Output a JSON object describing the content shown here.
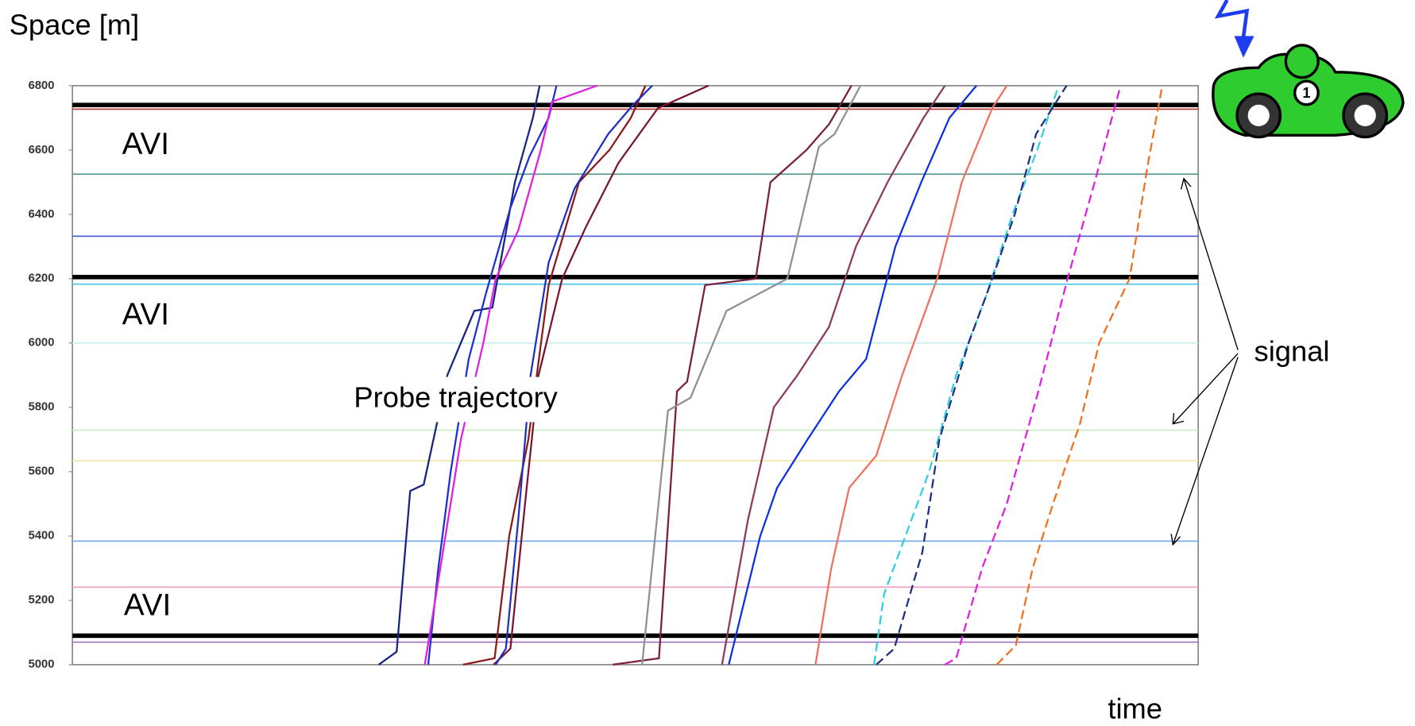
{
  "chart_data": {
    "type": "line",
    "y_label": "Space [m]",
    "x_label": "time",
    "ylim": [
      5000,
      6800
    ],
    "yticks": [
      5000,
      5200,
      5400,
      5600,
      5800,
      6000,
      6200,
      6400,
      6600,
      6800
    ],
    "xlim": [
      0,
      100
    ],
    "annotations": [
      "AVI",
      "AVI",
      "AVI",
      "Probe  trajectory",
      "signal"
    ],
    "avi_lines": [
      6740,
      6205,
      5090
    ],
    "signal_lines": [
      {
        "value": 6727,
        "color": "#c03030"
      },
      {
        "value": 6525,
        "color": "#5a9a90"
      },
      {
        "value": 6332,
        "color": "#5060e0"
      },
      {
        "value": 6183,
        "color": "#50c8f0"
      },
      {
        "value": 6000,
        "color": "#c8f0f0"
      },
      {
        "value": 5729,
        "color": "#c8ecc0"
      },
      {
        "value": 5634,
        "color": "#f0e8a0"
      },
      {
        "value": 5384,
        "color": "#80b0f0"
      },
      {
        "value": 5241,
        "color": "#f0a0c8"
      },
      {
        "value": 5070,
        "color": "#a070c0"
      }
    ],
    "series": [
      {
        "color": "#1a237e",
        "dash": false,
        "x": [
          27.2,
          28.8,
          30.0,
          31.2,
          33.3,
          35.7,
          37.3,
          39.3,
          40.9,
          41.5
        ],
        "values": [
          5000,
          5040,
          5540,
          5560,
          5900,
          6100,
          6110,
          6500,
          6700,
          6800
        ]
      },
      {
        "color": "#2030d0",
        "dash": false,
        "x": [
          31.6,
          32.5,
          33.6,
          35.2,
          36.7,
          38.9,
          40.6,
          42.3,
          43.0
        ],
        "values": [
          5000,
          5300,
          5600,
          5950,
          6150,
          6420,
          6580,
          6700,
          6800
        ]
      },
      {
        "color": "#e020e0",
        "dash": false,
        "x": [
          31.3,
          32.4,
          34.5,
          36.5,
          37.6,
          39.6,
          41.6,
          42.6,
          46.6
        ],
        "values": [
          5000,
          5240,
          5700,
          6000,
          6200,
          6350,
          6600,
          6750,
          6800
        ]
      },
      {
        "color": "#8b1a1a",
        "dash": false,
        "x": [
          34.7,
          37.5,
          38.8,
          40.5,
          42.3,
          45.0,
          47.7,
          49.6,
          50.9
        ],
        "values": [
          5000,
          5020,
          5400,
          5700,
          6180,
          6500,
          6600,
          6700,
          6800
        ]
      },
      {
        "color": "#7a1530",
        "dash": false,
        "x": [
          37.4,
          38.9,
          40.2,
          41.4,
          43.5,
          45.6,
          48.5,
          52.0,
          56.5
        ],
        "values": [
          5000,
          5050,
          5500,
          5900,
          6200,
          6360,
          6560,
          6730,
          6800
        ]
      },
      {
        "color": "#2030c0",
        "dash": false,
        "x": [
          37.6,
          38.5,
          39.6,
          40.7,
          42.3,
          44.6,
          47.6,
          49.8,
          51.5
        ],
        "values": [
          5000,
          5050,
          5450,
          5900,
          6250,
          6480,
          6650,
          6740,
          6800
        ]
      },
      {
        "color": "#7a2040",
        "dash": false,
        "x": [
          48.0,
          52.1,
          53.7,
          54.6,
          56.2,
          60.7,
          62.0,
          65.2,
          67.2,
          69.2
        ],
        "values": [
          5000,
          5020,
          5850,
          5880,
          6180,
          6200,
          6500,
          6600,
          6680,
          6800
        ]
      },
      {
        "color": "#909090",
        "dash": false,
        "x": [
          50.6,
          52.9,
          54.9,
          58.1,
          63.5,
          66.3,
          67.7,
          70.0
        ],
        "values": [
          5000,
          5790,
          5830,
          6100,
          6200,
          6610,
          6650,
          6800
        ]
      },
      {
        "color": "#8b3a62",
        "dash": false,
        "x": [
          57.7,
          60.0,
          62.3,
          64.4,
          67.2,
          69.6,
          72.4,
          75.6,
          77.5
        ],
        "values": [
          5000,
          5450,
          5800,
          5900,
          6050,
          6300,
          6500,
          6700,
          6800
        ]
      },
      {
        "color": "#1030e0",
        "dash": false,
        "x": [
          58.3,
          61.1,
          62.6,
          65.3,
          68.1,
          70.5,
          73.1,
          75.4,
          77.9,
          80.3
        ],
        "values": [
          5000,
          5400,
          5550,
          5700,
          5850,
          5950,
          6300,
          6500,
          6700,
          6800
        ]
      },
      {
        "color": "#f07060",
        "dash": false,
        "x": [
          66.0,
          67.4,
          69.0,
          71.4,
          73.7,
          76.8,
          79.0,
          81.7,
          83.0
        ],
        "values": [
          5000,
          5300,
          5550,
          5650,
          5900,
          6200,
          6500,
          6730,
          6800
        ]
      },
      {
        "color": "#30d0e0",
        "dash": true,
        "x": [
          71.2,
          72.1,
          74.0,
          76.1,
          78.5,
          81.2,
          83.5,
          85.7,
          87.6
        ],
        "values": [
          5000,
          5220,
          5400,
          5600,
          5900,
          6150,
          6400,
          6600,
          6800
        ]
      },
      {
        "color": "#203080",
        "dash": true,
        "x": [
          71.4,
          73.0,
          75.5,
          77.0,
          79.6,
          81.4,
          83.7,
          85.6,
          88.3
        ],
        "values": [
          5000,
          5050,
          5350,
          5700,
          6000,
          6170,
          6400,
          6650,
          6800
        ]
      },
      {
        "color": "#e020e0",
        "dash": true,
        "x": [
          77.5,
          78.5,
          80.8,
          83.0,
          85.8,
          88.4,
          90.8,
          93.1
        ],
        "values": [
          5000,
          5020,
          5300,
          5500,
          5850,
          6200,
          6500,
          6800
        ]
      },
      {
        "color": "#f07020",
        "dash": true,
        "x": [
          82.1,
          83.8,
          85.3,
          87.1,
          89.5,
          91.2,
          93.9,
          95.5,
          96.8
        ],
        "values": [
          5000,
          5060,
          5300,
          5500,
          5750,
          6000,
          6200,
          6550,
          6800
        ]
      }
    ]
  }
}
